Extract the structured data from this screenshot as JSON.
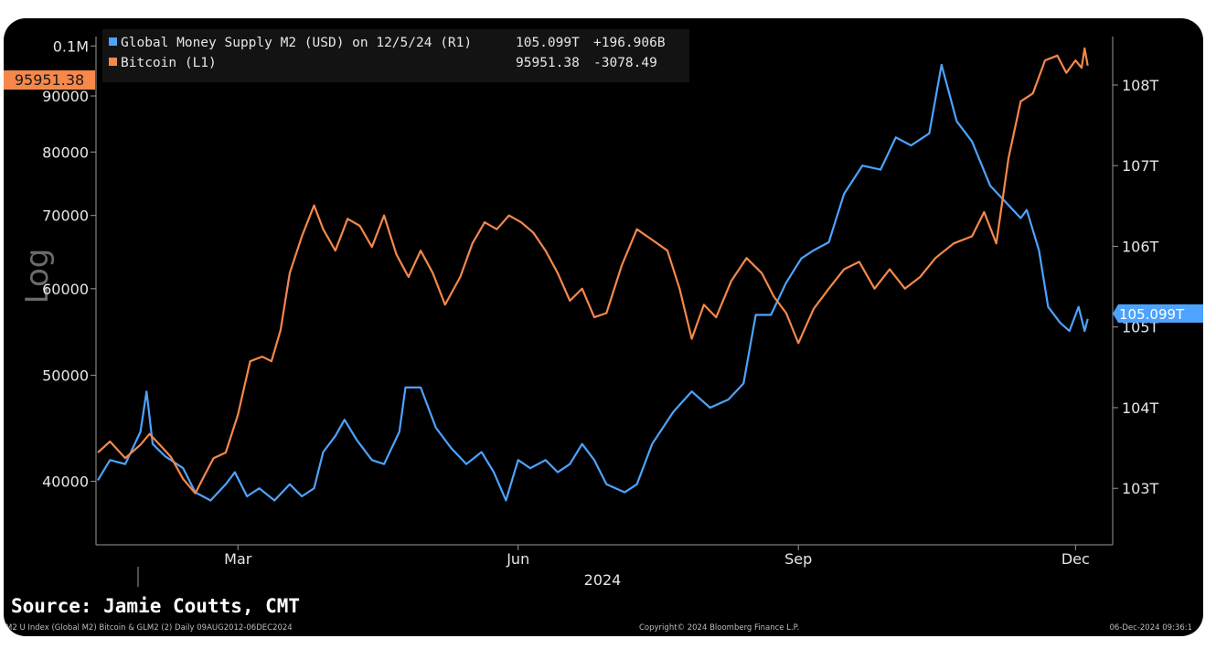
{
  "footer": {
    "source": "Source: Jamie Coutts, CMT",
    "index_info": "M2 U Index (Global M2) Bitcoin & GLM2 (2)  Daily 09AUG2012-06DEC2024",
    "copyright": "Copyright© 2024 Bloomberg Finance L.P.",
    "timestamp": "06-Dec-2024 09:36:1"
  },
  "colors": {
    "m2": "#4da3ff",
    "btc": "#f5884a",
    "background": "#000000",
    "axis": "#9a9a9a",
    "text": "#e6e6e6"
  },
  "chart_data": {
    "type": "line",
    "left_axis_scale": "log",
    "left_axis_word": "Log",
    "grid": false,
    "legend_placement": "top-left",
    "x_ticks": [
      "Mar",
      "Jun",
      "Sep",
      "Dec"
    ],
    "x_year_label": "2024",
    "left_ticks": [
      "40000",
      "50000",
      "60000",
      "70000",
      "80000",
      "90000",
      "0.1M"
    ],
    "left_tick_values": [
      40000,
      50000,
      60000,
      70000,
      80000,
      90000,
      100000
    ],
    "left_ylim": [
      35000,
      102000
    ],
    "right_ticks": [
      "103T",
      "104T",
      "105T",
      "106T",
      "107T",
      "108T"
    ],
    "right_tick_values": [
      103,
      104,
      105,
      106,
      107,
      108
    ],
    "right_ylim": [
      102.3,
      108.6
    ],
    "legend": [
      {
        "name": "Global Money Supply M2 (USD) on 12/5/24 (R1)",
        "value": "105.099T",
        "change": "+196.906B"
      },
      {
        "name": "Bitcoin (L1)",
        "value": "95951.38",
        "change": "-3078.49"
      }
    ],
    "last_value_tags": {
      "left": "95951.38",
      "right": "105.099T"
    },
    "x_domain": [
      "2024-01-15",
      "2024-12-06"
    ],
    "series": [
      {
        "name": "Global Money Supply M2 (USD)",
        "axis": "right",
        "unit": "T",
        "points": [
          [
            "2024-01-15",
            103.1
          ],
          [
            "2024-01-19",
            103.35
          ],
          [
            "2024-01-24",
            103.3
          ],
          [
            "2024-01-29",
            103.7
          ],
          [
            "2024-01-31",
            104.2
          ],
          [
            "2024-02-02",
            103.55
          ],
          [
            "2024-02-06",
            103.4
          ],
          [
            "2024-02-12",
            103.25
          ],
          [
            "2024-02-16",
            102.95
          ],
          [
            "2024-02-21",
            102.85
          ],
          [
            "2024-02-26",
            103.05
          ],
          [
            "2024-02-29",
            103.2
          ],
          [
            "2024-03-04",
            102.9
          ],
          [
            "2024-03-08",
            103.0
          ],
          [
            "2024-03-13",
            102.85
          ],
          [
            "2024-03-18",
            103.05
          ],
          [
            "2024-03-22",
            102.9
          ],
          [
            "2024-03-26",
            103.0
          ],
          [
            "2024-03-29",
            103.45
          ],
          [
            "2024-04-02",
            103.65
          ],
          [
            "2024-04-05",
            103.85
          ],
          [
            "2024-04-09",
            103.6
          ],
          [
            "2024-04-14",
            103.35
          ],
          [
            "2024-04-18",
            103.3
          ],
          [
            "2024-04-23",
            103.7
          ],
          [
            "2024-04-25",
            104.25
          ],
          [
            "2024-04-30",
            104.25
          ],
          [
            "2024-05-05",
            103.75
          ],
          [
            "2024-05-10",
            103.5
          ],
          [
            "2024-05-15",
            103.3
          ],
          [
            "2024-05-20",
            103.45
          ],
          [
            "2024-05-24",
            103.2
          ],
          [
            "2024-05-28",
            102.85
          ],
          [
            "2024-06-01",
            103.35
          ],
          [
            "2024-06-05",
            103.25
          ],
          [
            "2024-06-10",
            103.35
          ],
          [
            "2024-06-14",
            103.2
          ],
          [
            "2024-06-18",
            103.3
          ],
          [
            "2024-06-22",
            103.55
          ],
          [
            "2024-06-26",
            103.35
          ],
          [
            "2024-06-30",
            103.05
          ],
          [
            "2024-07-06",
            102.95
          ],
          [
            "2024-07-10",
            103.05
          ],
          [
            "2024-07-15",
            103.55
          ],
          [
            "2024-07-22",
            103.95
          ],
          [
            "2024-07-28",
            104.2
          ],
          [
            "2024-08-03",
            104.0
          ],
          [
            "2024-08-09",
            104.1
          ],
          [
            "2024-08-14",
            104.3
          ],
          [
            "2024-08-18",
            105.15
          ],
          [
            "2024-08-23",
            105.15
          ],
          [
            "2024-08-28",
            105.55
          ],
          [
            "2024-09-02",
            105.85
          ],
          [
            "2024-09-06",
            105.95
          ],
          [
            "2024-09-11",
            106.05
          ],
          [
            "2024-09-16",
            106.65
          ],
          [
            "2024-09-22",
            107.0
          ],
          [
            "2024-09-28",
            106.95
          ],
          [
            "2024-10-03",
            107.35
          ],
          [
            "2024-10-08",
            107.25
          ],
          [
            "2024-10-14",
            107.4
          ],
          [
            "2024-10-18",
            108.25
          ],
          [
            "2024-10-23",
            107.55
          ],
          [
            "2024-10-28",
            107.3
          ],
          [
            "2024-11-03",
            106.75
          ],
          [
            "2024-11-08",
            106.55
          ],
          [
            "2024-11-13",
            106.35
          ],
          [
            "2024-11-15",
            106.45
          ],
          [
            "2024-11-19",
            105.95
          ],
          [
            "2024-11-22",
            105.25
          ],
          [
            "2024-11-26",
            105.05
          ],
          [
            "2024-11-29",
            104.95
          ],
          [
            "2024-12-02",
            105.25
          ],
          [
            "2024-12-04",
            104.95
          ],
          [
            "2024-12-05",
            105.1
          ]
        ]
      },
      {
        "name": "Bitcoin",
        "axis": "left",
        "unit": "USD",
        "points": [
          [
            "2024-01-15",
            42500
          ],
          [
            "2024-01-19",
            43500
          ],
          [
            "2024-01-24",
            42000
          ],
          [
            "2024-01-29",
            43200
          ],
          [
            "2024-02-01",
            44200
          ],
          [
            "2024-02-05",
            43000
          ],
          [
            "2024-02-08",
            42100
          ],
          [
            "2024-02-12",
            40200
          ],
          [
            "2024-02-16",
            39000
          ],
          [
            "2024-02-19",
            40500
          ],
          [
            "2024-02-22",
            42000
          ],
          [
            "2024-02-26",
            42500
          ],
          [
            "2024-03-01",
            46000
          ],
          [
            "2024-03-05",
            51500
          ],
          [
            "2024-03-09",
            52000
          ],
          [
            "2024-03-12",
            51500
          ],
          [
            "2024-03-15",
            55000
          ],
          [
            "2024-03-18",
            62000
          ],
          [
            "2024-03-22",
            67000
          ],
          [
            "2024-03-26",
            71500
          ],
          [
            "2024-03-29",
            68000
          ],
          [
            "2024-04-02",
            65000
          ],
          [
            "2024-04-06",
            69500
          ],
          [
            "2024-04-10",
            68500
          ],
          [
            "2024-04-14",
            65500
          ],
          [
            "2024-04-18",
            70000
          ],
          [
            "2024-04-22",
            64500
          ],
          [
            "2024-04-26",
            61500
          ],
          [
            "2024-04-30",
            65000
          ],
          [
            "2024-05-04",
            62000
          ],
          [
            "2024-05-08",
            58000
          ],
          [
            "2024-05-13",
            61500
          ],
          [
            "2024-05-17",
            66000
          ],
          [
            "2024-05-21",
            69000
          ],
          [
            "2024-05-25",
            68000
          ],
          [
            "2024-05-29",
            70000
          ],
          [
            "2024-06-02",
            69000
          ],
          [
            "2024-06-06",
            67500
          ],
          [
            "2024-06-10",
            65000
          ],
          [
            "2024-06-14",
            62000
          ],
          [
            "2024-06-18",
            58500
          ],
          [
            "2024-06-22",
            60000
          ],
          [
            "2024-06-26",
            56500
          ],
          [
            "2024-06-30",
            57000
          ],
          [
            "2024-07-05",
            63000
          ],
          [
            "2024-07-10",
            68000
          ],
          [
            "2024-07-15",
            66500
          ],
          [
            "2024-07-20",
            65000
          ],
          [
            "2024-07-24",
            60000
          ],
          [
            "2024-07-28",
            54000
          ],
          [
            "2024-08-01",
            58000
          ],
          [
            "2024-08-05",
            56500
          ],
          [
            "2024-08-10",
            61000
          ],
          [
            "2024-08-15",
            64000
          ],
          [
            "2024-08-20",
            62000
          ],
          [
            "2024-08-24",
            59000
          ],
          [
            "2024-08-28",
            57000
          ],
          [
            "2024-09-01",
            53500
          ],
          [
            "2024-09-06",
            57500
          ],
          [
            "2024-09-11",
            60000
          ],
          [
            "2024-09-16",
            62500
          ],
          [
            "2024-09-21",
            63500
          ],
          [
            "2024-09-26",
            60000
          ],
          [
            "2024-10-01",
            62500
          ],
          [
            "2024-10-06",
            60000
          ],
          [
            "2024-10-11",
            61500
          ],
          [
            "2024-10-16",
            64000
          ],
          [
            "2024-10-22",
            66000
          ],
          [
            "2024-10-28",
            67000
          ],
          [
            "2024-11-01",
            70500
          ],
          [
            "2024-11-05",
            66000
          ],
          [
            "2024-11-09",
            79000
          ],
          [
            "2024-11-13",
            89000
          ],
          [
            "2024-11-17",
            90500
          ],
          [
            "2024-11-21",
            97000
          ],
          [
            "2024-11-25",
            98000
          ],
          [
            "2024-11-28",
            94500
          ],
          [
            "2024-12-01",
            97000
          ],
          [
            "2024-12-03",
            95500
          ],
          [
            "2024-12-04",
            99500
          ],
          [
            "2024-12-05",
            95951
          ]
        ]
      }
    ]
  }
}
